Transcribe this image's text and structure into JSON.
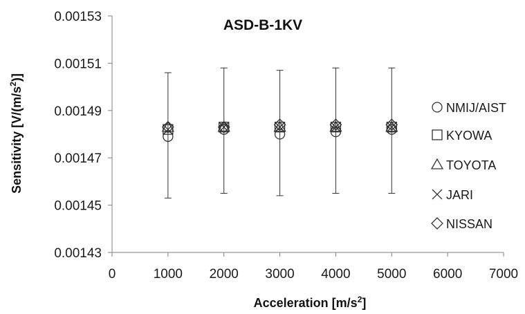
{
  "chart_data": {
    "type": "scatter",
    "title": "ASD-B-1KV",
    "xlabel": {
      "main": "Acceleration [m/s",
      "sup": "2",
      "end": "]"
    },
    "ylabel": {
      "main": "Sensitivity [V/(m/s",
      "sup": "2",
      "end": ")]"
    },
    "xlim": [
      0,
      7000
    ],
    "ylim": [
      0.00143,
      0.00153
    ],
    "xticks": [
      0,
      1000,
      2000,
      3000,
      4000,
      5000,
      6000,
      7000
    ],
    "xtick_labels": [
      "0",
      "1000",
      "2000",
      "3000",
      "4000",
      "5000",
      "6000",
      "7000"
    ],
    "yticks": [
      0.00143,
      0.00145,
      0.00147,
      0.00149,
      0.00151,
      0.00153
    ],
    "ytick_labels": [
      "0.00143",
      "0.00145",
      "0.00147",
      "0.00149",
      "0.00151",
      "0.00153"
    ],
    "grid": false,
    "legend_position": "right",
    "x": [
      1000,
      2000,
      3000,
      4000,
      5000
    ],
    "error_bars": {
      "series": "NMIJ/AIST",
      "lower": [
        0.001453,
        0.001455,
        0.001454,
        0.001455,
        0.001455
      ],
      "upper": [
        0.001506,
        0.001508,
        0.001507,
        0.001508,
        0.001508
      ]
    },
    "series": [
      {
        "name": "NMIJ/AIST",
        "marker": "circle",
        "values": [
          0.001479,
          0.001482,
          0.00148,
          0.001481,
          0.001482
        ]
      },
      {
        "name": "KYOWA",
        "marker": "square",
        "values": [
          0.001482,
          0.001483,
          0.001483,
          0.001483,
          0.001483
        ]
      },
      {
        "name": "TOYOTA",
        "marker": "triangle",
        "values": [
          0.001483,
          0.001483,
          0.001483,
          0.001483,
          0.001483
        ]
      },
      {
        "name": "JARI",
        "marker": "x",
        "values": [
          0.001482,
          0.001483,
          0.001483,
          0.001483,
          0.001483
        ]
      },
      {
        "name": "NISSAN",
        "marker": "diamond",
        "values": [
          0.001483,
          0.001483,
          0.001484,
          0.001484,
          0.001484
        ]
      }
    ],
    "colors": {
      "marker_stroke": "#333333",
      "axis": "#7f7f7f",
      "error_bar": "#333333"
    }
  }
}
